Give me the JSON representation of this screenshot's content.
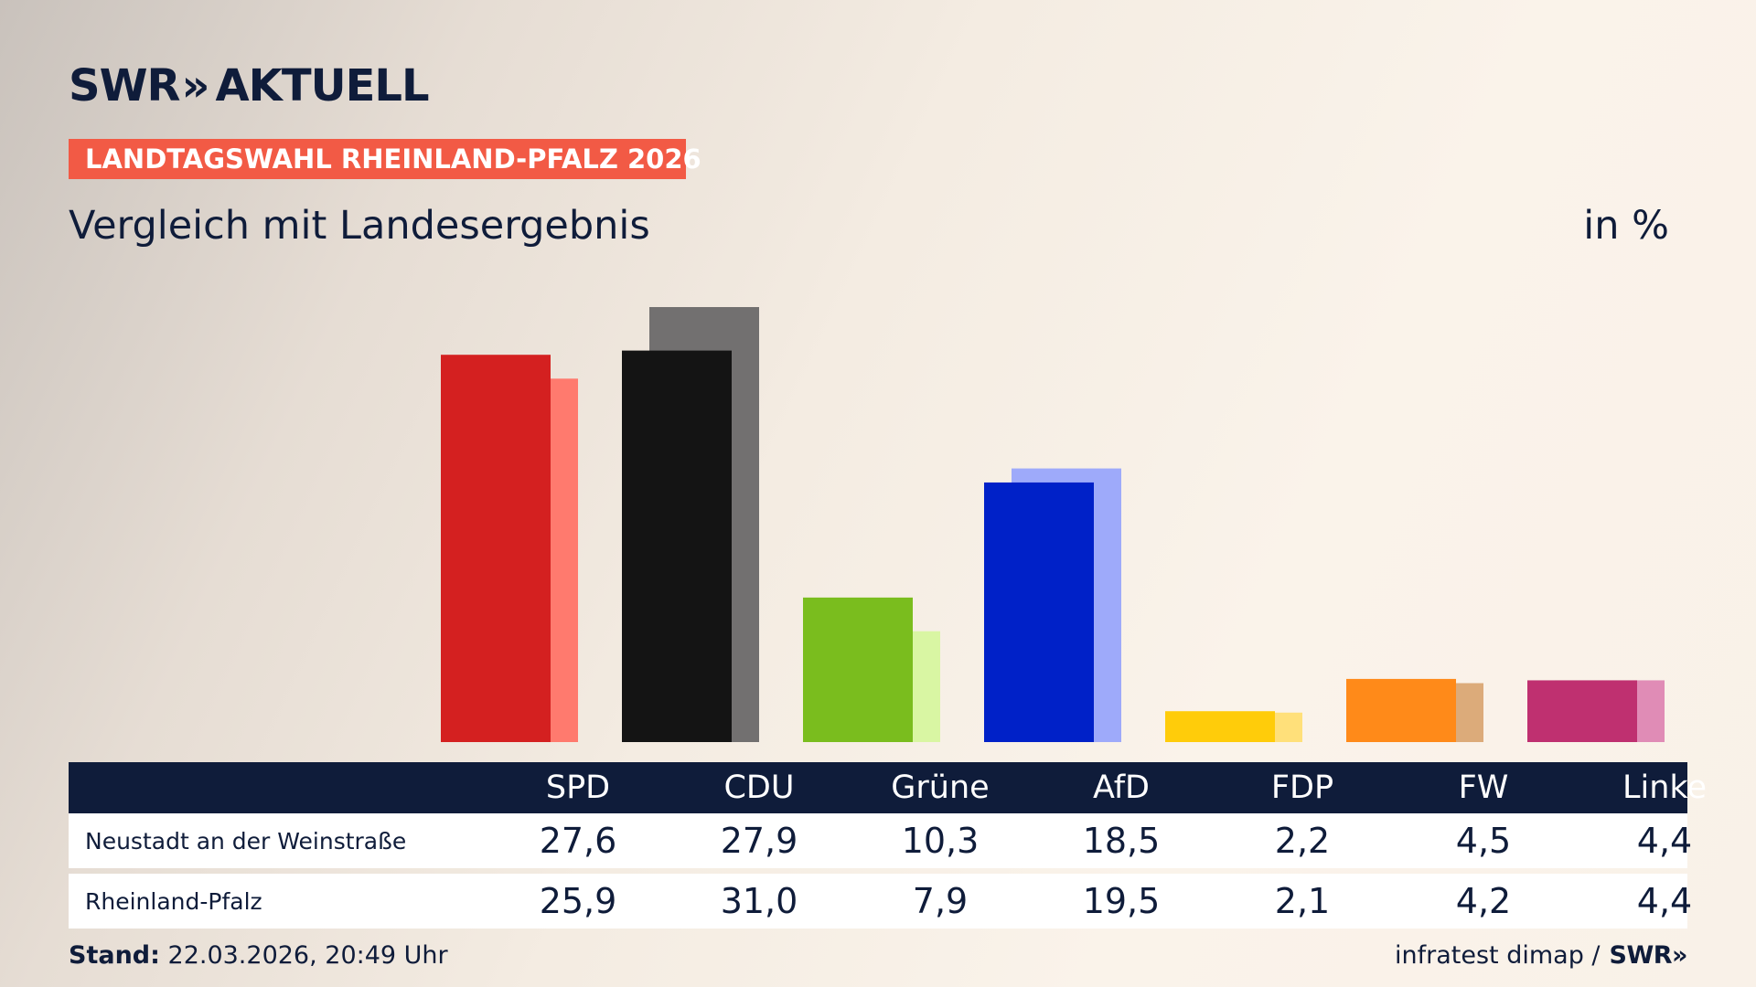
{
  "brand": {
    "logo_left": "SWR",
    "logo_chevrons": "»",
    "logo_right": "AKTUELL"
  },
  "badge": "LANDTAGSWAHL RHEINLAND-PFALZ 2026",
  "subtitle": "Vergleich mit Landesergebnis",
  "unit": "in %",
  "colors": {
    "primary": [
      "#d42020",
      "#141414",
      "#7abd1e",
      "#0021c8",
      "#ffcc0a",
      "#ff8a19",
      "#bf3070"
    ],
    "secondary": [
      "#ff7a6e",
      "#727070",
      "#d9f6a3",
      "#9eaafa",
      "#ffe07a",
      "#dcab7a",
      "#e08cb6"
    ],
    "navy": "#0f1c3a",
    "badge": "#f25a45"
  },
  "chart_data": {
    "type": "bar",
    "categories": [
      "SPD",
      "CDU",
      "Grüne",
      "AfD",
      "FDP",
      "FW",
      "Linke"
    ],
    "series": [
      {
        "name": "Neustadt an der Weinstraße",
        "values": [
          27.6,
          27.9,
          10.3,
          18.5,
          2.2,
          4.5,
          4.4
        ]
      },
      {
        "name": "Rheinland-Pfalz",
        "values": [
          25.9,
          31.0,
          7.9,
          19.5,
          2.1,
          4.2,
          4.4
        ]
      }
    ],
    "ylim": [
      0,
      31.0
    ]
  },
  "table": {
    "headers": [
      "SPD",
      "CDU",
      "Grüne",
      "AfD",
      "FDP",
      "FW",
      "Linke"
    ],
    "rows": [
      {
        "label": "Neustadt an der Weinstraße",
        "values": [
          "27,6",
          "27,9",
          "10,3",
          "18,5",
          "2,2",
          "4,5",
          "4,4"
        ]
      },
      {
        "label": "Rheinland-Pfalz",
        "values": [
          "25,9",
          "31,0",
          "7,9",
          "19,5",
          "2,1",
          "4,2",
          "4,4"
        ]
      }
    ]
  },
  "footer": {
    "stand_label": "Stand:",
    "stand_value": "22.03.2026, 20:49 Uhr",
    "source": "infratest dimap /",
    "source_logo": "SWR»"
  }
}
